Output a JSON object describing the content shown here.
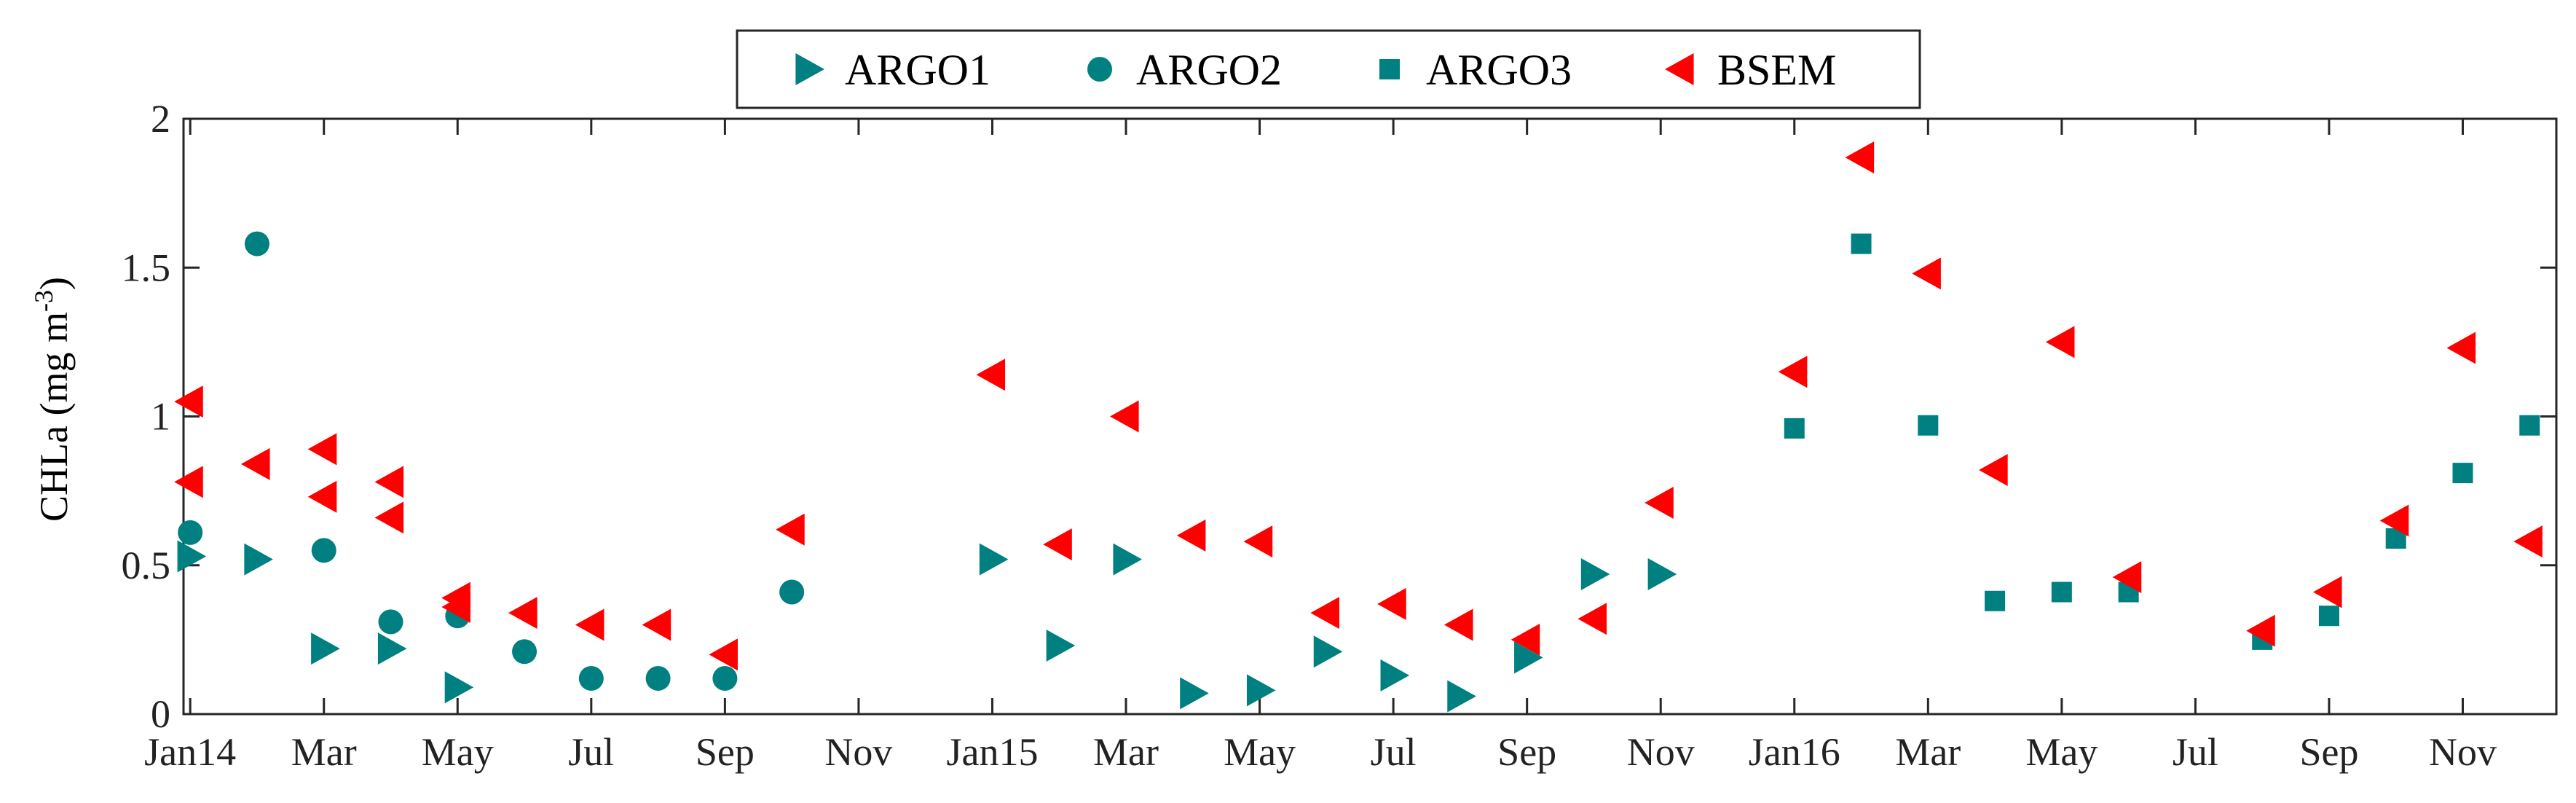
{
  "chart_data": {
    "type": "scatter",
    "title": "",
    "xlabel": "",
    "ylabel": "CHLa (mg m",
    "ylabel_sup": "-3",
    "ylabel_close": ")",
    "ylim": [
      0,
      2
    ],
    "yticks": [
      0,
      0.5,
      1,
      1.5,
      2
    ],
    "ytick_labels": [
      "0",
      "0.5",
      "1",
      "1.5",
      "2"
    ],
    "xlim": [
      "2014-01",
      "2016-12"
    ],
    "xticks": [
      "2014-01",
      "2014-03",
      "2014-05",
      "2014-07",
      "2014-09",
      "2014-11",
      "2015-01",
      "2015-03",
      "2015-05",
      "2015-07",
      "2015-09",
      "2015-11",
      "2016-01",
      "2016-03",
      "2016-05",
      "2016-07",
      "2016-09",
      "2016-11"
    ],
    "xtick_labels": [
      "Jan14",
      "Mar",
      "May",
      "Jul",
      "Sep",
      "Nov",
      "Jan15",
      "Mar",
      "May",
      "Jul",
      "Sep",
      "Nov",
      "Jan16",
      "Mar",
      "May",
      "Jul",
      "Sep",
      "Nov"
    ],
    "grid": false,
    "legend_position": "top-center",
    "series": [
      {
        "name": "ARGO1",
        "marker": "triangle-right",
        "color": "#008080",
        "points": [
          {
            "x": "2014-01",
            "y": 0.53
          },
          {
            "x": "2014-02",
            "y": 0.52
          },
          {
            "x": "2014-03",
            "y": 0.22
          },
          {
            "x": "2014-04",
            "y": 0.22
          },
          {
            "x": "2014-05",
            "y": 0.09
          },
          {
            "x": "2015-01",
            "y": 0.52
          },
          {
            "x": "2015-02",
            "y": 0.23
          },
          {
            "x": "2015-03",
            "y": 0.52
          },
          {
            "x": "2015-04",
            "y": 0.07
          },
          {
            "x": "2015-05",
            "y": 0.08
          },
          {
            "x": "2015-06",
            "y": 0.21
          },
          {
            "x": "2015-07",
            "y": 0.13
          },
          {
            "x": "2015-08",
            "y": 0.06
          },
          {
            "x": "2015-09",
            "y": 0.19
          },
          {
            "x": "2015-10",
            "y": 0.47
          },
          {
            "x": "2015-11",
            "y": 0.47
          }
        ]
      },
      {
        "name": "ARGO2",
        "marker": "circle",
        "color": "#008080",
        "points": [
          {
            "x": "2014-01",
            "y": 0.61
          },
          {
            "x": "2014-02",
            "y": 1.58
          },
          {
            "x": "2014-03",
            "y": 0.55
          },
          {
            "x": "2014-04",
            "y": 0.31
          },
          {
            "x": "2014-05",
            "y": 0.33
          },
          {
            "x": "2014-06",
            "y": 0.21
          },
          {
            "x": "2014-07",
            "y": 0.12
          },
          {
            "x": "2014-08",
            "y": 0.12
          },
          {
            "x": "2014-09",
            "y": 0.12
          },
          {
            "x": "2014-10",
            "y": 0.41
          }
        ]
      },
      {
        "name": "ARGO3",
        "marker": "square",
        "color": "#008080",
        "points": [
          {
            "x": "2016-01",
            "y": 0.96
          },
          {
            "x": "2016-02",
            "y": 1.58
          },
          {
            "x": "2016-03",
            "y": 0.97
          },
          {
            "x": "2016-04",
            "y": 0.38
          },
          {
            "x": "2016-05",
            "y": 0.41
          },
          {
            "x": "2016-06",
            "y": 0.41
          },
          {
            "x": "2016-08",
            "y": 0.25
          },
          {
            "x": "2016-09",
            "y": 0.33
          },
          {
            "x": "2016-10",
            "y": 0.59
          },
          {
            "x": "2016-11",
            "y": 0.81
          },
          {
            "x": "2016-12",
            "y": 0.97
          }
        ]
      },
      {
        "name": "BSEM",
        "marker": "triangle-left",
        "color": "#ff0000",
        "points": [
          {
            "x": "2014-01",
            "y": 1.05
          },
          {
            "x": "2014-01",
            "y": 0.78
          },
          {
            "x": "2014-02",
            "y": 0.84
          },
          {
            "x": "2014-03",
            "y": 0.89
          },
          {
            "x": "2014-03",
            "y": 0.73
          },
          {
            "x": "2014-04",
            "y": 0.78
          },
          {
            "x": "2014-04",
            "y": 0.66
          },
          {
            "x": "2014-05",
            "y": 0.39
          },
          {
            "x": "2014-05",
            "y": 0.36
          },
          {
            "x": "2014-06",
            "y": 0.34
          },
          {
            "x": "2014-07",
            "y": 0.3
          },
          {
            "x": "2014-08",
            "y": 0.3
          },
          {
            "x": "2014-09",
            "y": 0.2
          },
          {
            "x": "2014-10",
            "y": 0.62
          },
          {
            "x": "2015-01",
            "y": 1.14
          },
          {
            "x": "2015-02",
            "y": 0.57
          },
          {
            "x": "2015-03",
            "y": 1.0
          },
          {
            "x": "2015-04",
            "y": 0.6
          },
          {
            "x": "2015-05",
            "y": 0.58
          },
          {
            "x": "2015-06",
            "y": 0.34
          },
          {
            "x": "2015-07",
            "y": 0.37
          },
          {
            "x": "2015-08",
            "y": 0.3
          },
          {
            "x": "2015-09",
            "y": 0.25
          },
          {
            "x": "2015-10",
            "y": 0.32
          },
          {
            "x": "2015-11",
            "y": 0.71
          },
          {
            "x": "2016-01",
            "y": 1.15
          },
          {
            "x": "2016-02",
            "y": 1.87
          },
          {
            "x": "2016-03",
            "y": 1.48
          },
          {
            "x": "2016-04",
            "y": 0.82
          },
          {
            "x": "2016-05",
            "y": 1.25
          },
          {
            "x": "2016-06",
            "y": 0.46
          },
          {
            "x": "2016-08",
            "y": 0.28
          },
          {
            "x": "2016-09",
            "y": 0.41
          },
          {
            "x": "2016-10",
            "y": 0.65
          },
          {
            "x": "2016-11",
            "y": 1.23
          },
          {
            "x": "2016-12",
            "y": 0.58
          }
        ]
      }
    ]
  }
}
